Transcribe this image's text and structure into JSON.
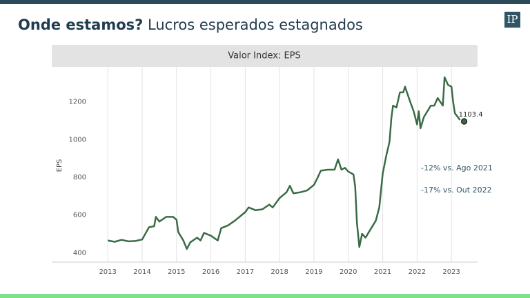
{
  "header": {
    "title_bold": "Onde estamos?",
    "title_rest": "Lucros esperados estagnados",
    "logo": "IP"
  },
  "chart_data": {
    "type": "line",
    "title": "Valor Index: EPS",
    "y_label": "EPS",
    "annotations": [
      "-12% vs. Ago 2021",
      "-17% vs. Out 2022"
    ],
    "xlim": [
      2011.37,
      2023.76
    ],
    "xticks": [
      2013,
      2014,
      2015,
      2016,
      2017,
      2018,
      2019,
      2020,
      2021,
      2022,
      2023
    ],
    "ylim": [
      350,
      1385
    ],
    "yticks": [
      400,
      600,
      800,
      1000,
      1200
    ],
    "grid": "x",
    "series": [
      {
        "name": "EPS",
        "color": "#3a6b45",
        "x": [
          2013.0,
          2013.2,
          2013.4,
          2013.6,
          2013.8,
          2014.0,
          2014.2,
          2014.35,
          2014.4,
          2014.5,
          2014.7,
          2014.9,
          2015.0,
          2015.05,
          2015.2,
          2015.3,
          2015.4,
          2015.6,
          2015.7,
          2015.8,
          2016.0,
          2016.2,
          2016.3,
          2016.5,
          2016.7,
          2016.9,
          2017.0,
          2017.1,
          2017.3,
          2017.5,
          2017.7,
          2017.8,
          2018.0,
          2018.2,
          2018.3,
          2018.4,
          2018.6,
          2018.8,
          2019.0,
          2019.1,
          2019.2,
          2019.4,
          2019.6,
          2019.7,
          2019.8,
          2019.9,
          2020.0,
          2020.15,
          2020.2,
          2020.25,
          2020.32,
          2020.4,
          2020.5,
          2020.6,
          2020.8,
          2020.9,
          2021.0,
          2021.1,
          2021.2,
          2021.25,
          2021.3,
          2021.4,
          2021.5,
          2021.6,
          2021.65,
          2021.8,
          2021.9,
          2022.0,
          2022.05,
          2022.1,
          2022.2,
          2022.4,
          2022.5,
          2022.6,
          2022.75,
          2022.8,
          2022.9,
          2023.0,
          2023.05,
          2023.1,
          2023.25
        ],
        "values": [
          465,
          458,
          468,
          460,
          462,
          470,
          535,
          540,
          590,
          565,
          590,
          590,
          575,
          510,
          465,
          420,
          455,
          480,
          465,
          505,
          490,
          465,
          530,
          545,
          570,
          600,
          615,
          640,
          625,
          630,
          655,
          640,
          690,
          720,
          755,
          715,
          720,
          730,
          760,
          795,
          835,
          840,
          840,
          895,
          840,
          850,
          830,
          815,
          750,
          560,
          430,
          500,
          480,
          510,
          570,
          640,
          820,
          910,
          990,
          1110,
          1180,
          1170,
          1250,
          1250,
          1280,
          1200,
          1150,
          1080,
          1150,
          1060,
          1120,
          1180,
          1180,
          1220,
          1180,
          1330,
          1290,
          1280,
          1200,
          1140,
          1103.4
        ]
      }
    ]
  }
}
